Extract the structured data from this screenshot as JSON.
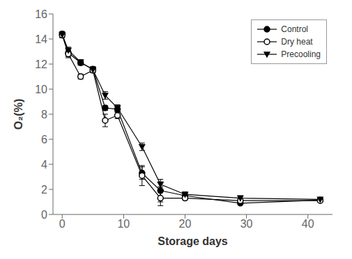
{
  "chart_data": {
    "type": "line",
    "x": [
      0,
      1,
      3,
      5,
      7,
      9,
      13,
      16,
      20,
      29,
      42
    ],
    "xlabel": "Storage days",
    "ylabel": "O₂(%)",
    "xlim": [
      -1.5,
      44
    ],
    "xticks": [
      0,
      10,
      20,
      30,
      40
    ],
    "ylim": [
      0,
      16
    ],
    "yticks": [
      0,
      2,
      4,
      6,
      8,
      10,
      12,
      14,
      16
    ],
    "grid": false,
    "legend": "upper right",
    "series": [
      {
        "name": "Control",
        "color": "black",
        "marker": "circle",
        "values": [
          14.4,
          12.9,
          12.1,
          11.6,
          8.5,
          8.4,
          3.3,
          1.9,
          1.5,
          0.9,
          1.15
        ],
        "yerr": [
          0.2,
          0.3,
          0.2,
          0.2,
          0.2,
          0.2,
          0.5,
          0.9,
          0.2,
          0.1,
          0.1
        ]
      },
      {
        "name": "Dry heat",
        "color": "black",
        "marker": "open_circle",
        "values": [
          14.3,
          12.8,
          11.0,
          11.5,
          7.5,
          7.9,
          3.1,
          1.3,
          1.3,
          1.1,
          1.1
        ],
        "yerr": [
          0.2,
          0.3,
          0.2,
          0.2,
          0.5,
          0.25,
          0.8,
          0.6,
          0.15,
          0.1,
          0.1
        ]
      },
      {
        "name": "Precooling",
        "color": "black",
        "marker": "triangle_down",
        "values": [
          14.35,
          13.1,
          12.15,
          11.55,
          9.5,
          8.5,
          5.4,
          2.4,
          1.6,
          1.3,
          1.2
        ],
        "yerr": [
          0.2,
          0.25,
          0.2,
          0.2,
          0.3,
          0.25,
          0.3,
          0.2,
          0.2,
          0.2,
          0.1
        ]
      }
    ]
  }
}
